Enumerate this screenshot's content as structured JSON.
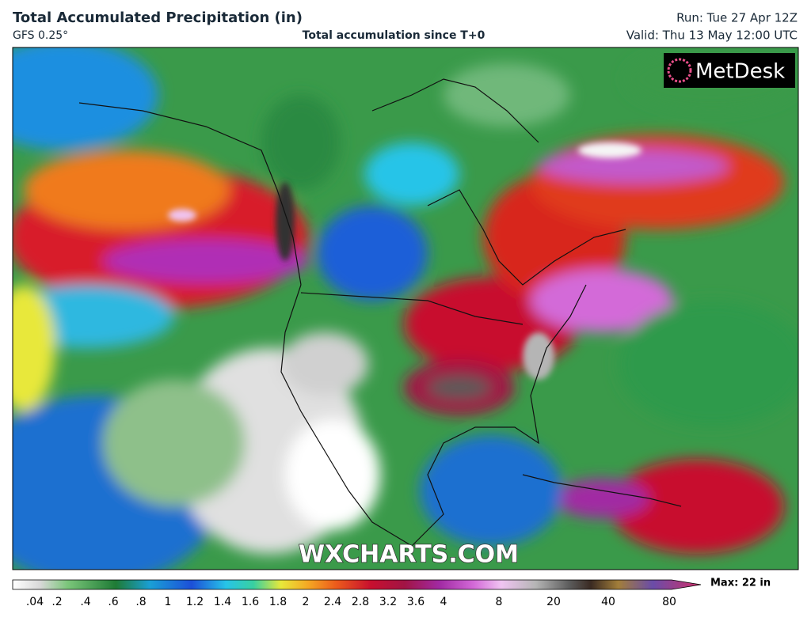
{
  "header": {
    "title": "Total Accumulated Precipitation (in)",
    "model": "GFS 0.25°",
    "subtitle": "Total accumulation since T+0",
    "run": "Run: Tue 27 Apr 12Z",
    "valid": "Valid: Thu 13 May 12:00 UTC"
  },
  "logo": "MetDesk",
  "watermark": "WXCHARTS.COM",
  "colorbar": {
    "labels": [
      ".04",
      ".2",
      ".4",
      ".6",
      ".8",
      "1",
      "1.2",
      "1.4",
      "1.6",
      "1.8",
      "2",
      "2.4",
      "2.8",
      "3.2",
      "3.6",
      "4",
      "8",
      "20",
      "40",
      "80"
    ],
    "max": "Max: 22 in"
  }
}
